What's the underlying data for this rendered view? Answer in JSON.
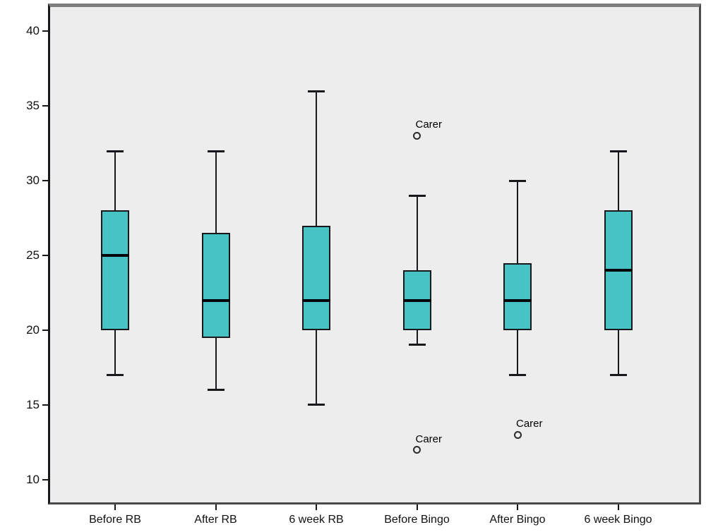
{
  "chart_data": {
    "type": "box",
    "title": "",
    "xlabel": "",
    "ylabel": "",
    "ylim": [
      8.4,
      41.6
    ],
    "grid": false,
    "legend": false,
    "y_ticks": [
      10,
      15,
      20,
      25,
      30,
      35,
      40
    ],
    "categories": [
      "Before RB",
      "After RB",
      "6 week RB",
      "Before Bingo",
      "After Bingo",
      "6 week Bingo"
    ],
    "series": [
      {
        "category": "Before RB",
        "min": 17,
        "q1": 20,
        "median": 25,
        "q3": 28,
        "max": 32,
        "outliers": []
      },
      {
        "category": "After RB",
        "min": 16,
        "q1": 19.5,
        "median": 22,
        "q3": 26.5,
        "max": 32,
        "outliers": []
      },
      {
        "category": "6 week RB",
        "min": 15,
        "q1": 20,
        "median": 22,
        "q3": 27,
        "max": 36,
        "outliers": []
      },
      {
        "category": "Before Bingo",
        "min": 19,
        "q1": 20,
        "median": 22,
        "q3": 24,
        "max": 29,
        "outliers": [
          {
            "value": 33,
            "label": "Carer"
          },
          {
            "value": 12,
            "label": "Carer"
          }
        ]
      },
      {
        "category": "After Bingo",
        "min": 17,
        "q1": 20,
        "median": 22,
        "q3": 24.5,
        "max": 30,
        "outliers": [
          {
            "value": 13,
            "label": "Carer"
          }
        ]
      },
      {
        "category": "6 week Bingo",
        "min": 17,
        "q1": 20,
        "median": 24,
        "q3": 28,
        "max": 32,
        "outliers": []
      }
    ],
    "colors": {
      "box_fill": "#47c3c6",
      "box_border": "#17181c",
      "median": "#05060a",
      "plot_background": "#ededed",
      "frame_top": "#7f7f7f",
      "frame_sides": "#4a4a4a",
      "axis": "#17181c",
      "text": "#111111"
    }
  }
}
